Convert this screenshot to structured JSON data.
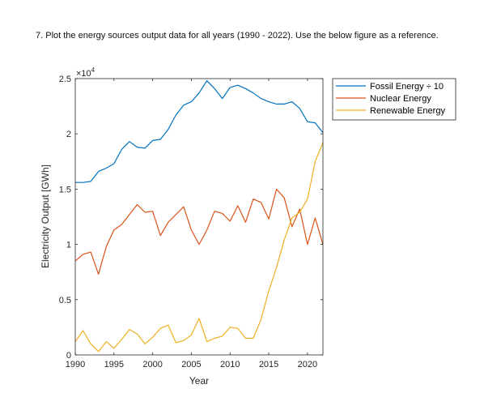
{
  "question": {
    "text": "7. Plot the energy sources output data for all years (1990 - 2022). Use the below figure as a reference."
  },
  "chart_data": {
    "type": "line",
    "title": "",
    "xlabel": "Year",
    "ylabel": "Electricity Output [GWh]",
    "y_exponent_label": "×10",
    "y_exponent_power": "4",
    "xlim": [
      1990,
      2022
    ],
    "ylim": [
      0,
      25000
    ],
    "x_ticks": [
      1990,
      1995,
      2000,
      2005,
      2010,
      2015,
      2020
    ],
    "y_ticks": [
      0,
      5000,
      10000,
      15000,
      20000,
      25000
    ],
    "y_tick_labels": [
      "0",
      "0.5",
      "1",
      "1.5",
      "2",
      "2.5"
    ],
    "grid": false,
    "legend_position": "outside-top-right",
    "x": [
      1990,
      1991,
      1992,
      1993,
      1994,
      1995,
      1996,
      1997,
      1998,
      1999,
      2000,
      2001,
      2002,
      2003,
      2004,
      2005,
      2006,
      2007,
      2008,
      2009,
      2010,
      2011,
      2012,
      2013,
      2014,
      2015,
      2016,
      2017,
      2018,
      2019,
      2020,
      2021,
      2022
    ],
    "series": [
      {
        "name": "Fossil Energy ÷ 10",
        "color": "#0072BD",
        "values": [
          15600,
          15600,
          15700,
          16600,
          16900,
          17300,
          18600,
          19300,
          18800,
          18700,
          19400,
          19500,
          20400,
          21700,
          22600,
          22900,
          23700,
          24800,
          24100,
          23200,
          24200,
          24400,
          24100,
          23700,
          23200,
          22900,
          22700,
          22700,
          22900,
          22300,
          21100,
          21000,
          20100
        ]
      },
      {
        "name": "Nuclear Energy",
        "color": "#D95319",
        "values": [
          8500,
          9100,
          9300,
          7300,
          9800,
          11300,
          11800,
          12700,
          13600,
          12900,
          13000,
          10800,
          12000,
          12700,
          13400,
          11300,
          10000,
          11300,
          13000,
          12800,
          12100,
          13500,
          12000,
          14100,
          13800,
          12300,
          15000,
          14200,
          11600,
          13200,
          10000,
          12400,
          10000
        ]
      },
      {
        "name": "Renewable Energy",
        "color": "#EDB120",
        "values": [
          1200,
          2200,
          1000,
          300,
          1200,
          600,
          1400,
          2300,
          1900,
          1000,
          1600,
          2400,
          2700,
          1100,
          1300,
          1800,
          3300,
          1200,
          1500,
          1700,
          2500,
          2400,
          1500,
          1500,
          3200,
          5800,
          7900,
          10400,
          12400,
          12900,
          14100,
          17500,
          19200
        ]
      }
    ]
  }
}
